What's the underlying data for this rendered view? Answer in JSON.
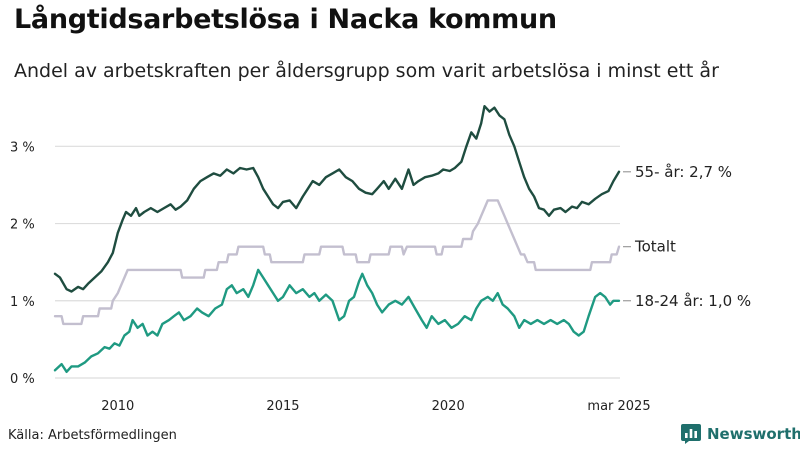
{
  "header": {
    "title": "Långtidsarbetslösa i Nacka kommun",
    "subtitle": "Andel av arbetskraften per åldersgrupp som varit arbetslösa i minst ett år"
  },
  "footer": {
    "source": "Källa: Arbetsförmedlingen",
    "brand": "Newsworthy"
  },
  "colors": {
    "older": "#1f4d40",
    "total": "#c3bfcf",
    "young": "#1f9a82",
    "grid": "#dddddd",
    "brand": "#1f6f6c"
  },
  "chart_data": {
    "type": "line",
    "title": "Långtidsarbetslösa i Nacka kommun",
    "subtitle": "Andel av arbetskraften per åldersgrupp som varit arbetslösa i minst ett år",
    "xlim": [
      2008.1,
      2025.2
    ],
    "ylim": [
      0,
      3.6
    ],
    "grid": "horizontal",
    "y_ticks": [
      0,
      1,
      2,
      3
    ],
    "y_tick_labels": [
      "0 %",
      "1 %",
      "2 %",
      "3 %"
    ],
    "x_ticks": [
      2010,
      2015,
      2020,
      2025.17
    ],
    "x_tick_labels": [
      "2010",
      "2015",
      "2020",
      "mar 2025"
    ],
    "series": [
      {
        "name": "55- år",
        "end_label": "55- år: 2,7 %",
        "points": [
          [
            2008.1,
            1.35
          ],
          [
            2008.25,
            1.3
          ],
          [
            2008.45,
            1.15
          ],
          [
            2008.6,
            1.12
          ],
          [
            2008.8,
            1.18
          ],
          [
            2008.95,
            1.15
          ],
          [
            2009.1,
            1.22
          ],
          [
            2009.3,
            1.3
          ],
          [
            2009.5,
            1.38
          ],
          [
            2009.7,
            1.5
          ],
          [
            2009.85,
            1.62
          ],
          [
            2010.0,
            1.88
          ],
          [
            2010.15,
            2.05
          ],
          [
            2010.25,
            2.15
          ],
          [
            2010.4,
            2.1
          ],
          [
            2010.55,
            2.2
          ],
          [
            2010.65,
            2.1
          ],
          [
            2010.8,
            2.15
          ],
          [
            2011.0,
            2.2
          ],
          [
            2011.2,
            2.15
          ],
          [
            2011.4,
            2.2
          ],
          [
            2011.6,
            2.25
          ],
          [
            2011.75,
            2.18
          ],
          [
            2011.9,
            2.22
          ],
          [
            2012.1,
            2.3
          ],
          [
            2012.3,
            2.45
          ],
          [
            2012.5,
            2.55
          ],
          [
            2012.7,
            2.6
          ],
          [
            2012.9,
            2.65
          ],
          [
            2013.1,
            2.62
          ],
          [
            2013.3,
            2.7
          ],
          [
            2013.5,
            2.65
          ],
          [
            2013.7,
            2.72
          ],
          [
            2013.9,
            2.7
          ],
          [
            2014.1,
            2.72
          ],
          [
            2014.25,
            2.6
          ],
          [
            2014.4,
            2.45
          ],
          [
            2014.55,
            2.35
          ],
          [
            2014.7,
            2.25
          ],
          [
            2014.85,
            2.2
          ],
          [
            2015.0,
            2.28
          ],
          [
            2015.2,
            2.3
          ],
          [
            2015.4,
            2.2
          ],
          [
            2015.6,
            2.35
          ],
          [
            2015.75,
            2.45
          ],
          [
            2015.9,
            2.55
          ],
          [
            2016.1,
            2.5
          ],
          [
            2016.3,
            2.6
          ],
          [
            2016.5,
            2.65
          ],
          [
            2016.7,
            2.7
          ],
          [
            2016.9,
            2.6
          ],
          [
            2017.1,
            2.55
          ],
          [
            2017.3,
            2.45
          ],
          [
            2017.5,
            2.4
          ],
          [
            2017.7,
            2.38
          ],
          [
            2017.85,
            2.45
          ],
          [
            2018.05,
            2.55
          ],
          [
            2018.2,
            2.45
          ],
          [
            2018.4,
            2.58
          ],
          [
            2018.6,
            2.45
          ],
          [
            2018.8,
            2.7
          ],
          [
            2018.95,
            2.5
          ],
          [
            2019.1,
            2.55
          ],
          [
            2019.3,
            2.6
          ],
          [
            2019.5,
            2.62
          ],
          [
            2019.7,
            2.65
          ],
          [
            2019.85,
            2.7
          ],
          [
            2020.05,
            2.68
          ],
          [
            2020.2,
            2.72
          ],
          [
            2020.4,
            2.8
          ],
          [
            2020.55,
            3.0
          ],
          [
            2020.7,
            3.18
          ],
          [
            2020.85,
            3.1
          ],
          [
            2021.0,
            3.3
          ],
          [
            2021.1,
            3.52
          ],
          [
            2021.25,
            3.45
          ],
          [
            2021.4,
            3.5
          ],
          [
            2021.55,
            3.4
          ],
          [
            2021.7,
            3.35
          ],
          [
            2021.85,
            3.15
          ],
          [
            2022.0,
            3.0
          ],
          [
            2022.15,
            2.8
          ],
          [
            2022.3,
            2.6
          ],
          [
            2022.45,
            2.45
          ],
          [
            2022.6,
            2.35
          ],
          [
            2022.75,
            2.2
          ],
          [
            2022.9,
            2.18
          ],
          [
            2023.05,
            2.1
          ],
          [
            2023.2,
            2.18
          ],
          [
            2023.4,
            2.2
          ],
          [
            2023.55,
            2.15
          ],
          [
            2023.75,
            2.22
          ],
          [
            2023.9,
            2.2
          ],
          [
            2024.05,
            2.28
          ],
          [
            2024.25,
            2.25
          ],
          [
            2024.45,
            2.32
          ],
          [
            2024.65,
            2.38
          ],
          [
            2024.85,
            2.42
          ],
          [
            2025.0,
            2.55
          ],
          [
            2025.17,
            2.67
          ]
        ]
      },
      {
        "name": "Totalt",
        "end_label": "Totalt",
        "points": [
          [
            2008.1,
            0.8
          ],
          [
            2008.3,
            0.8
          ],
          [
            2008.35,
            0.7
          ],
          [
            2008.9,
            0.7
          ],
          [
            2008.95,
            0.8
          ],
          [
            2009.4,
            0.8
          ],
          [
            2009.45,
            0.9
          ],
          [
            2009.8,
            0.9
          ],
          [
            2009.85,
            1.0
          ],
          [
            2010.0,
            1.1
          ],
          [
            2010.1,
            1.2
          ],
          [
            2010.2,
            1.3
          ],
          [
            2010.3,
            1.4
          ],
          [
            2011.9,
            1.4
          ],
          [
            2011.95,
            1.3
          ],
          [
            2012.6,
            1.3
          ],
          [
            2012.65,
            1.4
          ],
          [
            2013.0,
            1.4
          ],
          [
            2013.05,
            1.5
          ],
          [
            2013.3,
            1.5
          ],
          [
            2013.35,
            1.6
          ],
          [
            2013.6,
            1.6
          ],
          [
            2013.65,
            1.7
          ],
          [
            2014.4,
            1.7
          ],
          [
            2014.45,
            1.6
          ],
          [
            2014.6,
            1.6
          ],
          [
            2014.65,
            1.5
          ],
          [
            2015.6,
            1.5
          ],
          [
            2015.65,
            1.6
          ],
          [
            2016.1,
            1.6
          ],
          [
            2016.15,
            1.7
          ],
          [
            2016.8,
            1.7
          ],
          [
            2016.85,
            1.6
          ],
          [
            2017.2,
            1.6
          ],
          [
            2017.25,
            1.5
          ],
          [
            2017.6,
            1.5
          ],
          [
            2017.65,
            1.6
          ],
          [
            2018.2,
            1.6
          ],
          [
            2018.25,
            1.7
          ],
          [
            2018.6,
            1.7
          ],
          [
            2018.65,
            1.6
          ],
          [
            2018.75,
            1.7
          ],
          [
            2019.6,
            1.7
          ],
          [
            2019.65,
            1.6
          ],
          [
            2019.8,
            1.6
          ],
          [
            2019.85,
            1.7
          ],
          [
            2020.4,
            1.7
          ],
          [
            2020.45,
            1.8
          ],
          [
            2020.7,
            1.8
          ],
          [
            2020.75,
            1.9
          ],
          [
            2020.9,
            2.0
          ],
          [
            2021.0,
            2.1
          ],
          [
            2021.1,
            2.2
          ],
          [
            2021.2,
            2.3
          ],
          [
            2021.5,
            2.3
          ],
          [
            2021.6,
            2.2
          ],
          [
            2021.7,
            2.1
          ],
          [
            2021.8,
            2.0
          ],
          [
            2021.9,
            1.9
          ],
          [
            2022.0,
            1.8
          ],
          [
            2022.1,
            1.7
          ],
          [
            2022.2,
            1.6
          ],
          [
            2022.3,
            1.6
          ],
          [
            2022.4,
            1.5
          ],
          [
            2022.6,
            1.5
          ],
          [
            2022.65,
            1.4
          ],
          [
            2024.3,
            1.4
          ],
          [
            2024.35,
            1.5
          ],
          [
            2024.9,
            1.5
          ],
          [
            2024.95,
            1.6
          ],
          [
            2025.1,
            1.6
          ],
          [
            2025.17,
            1.7
          ]
        ]
      },
      {
        "name": "18-24 år",
        "end_label": "18-24 år: 1,0 %",
        "points": [
          [
            2008.1,
            0.1
          ],
          [
            2008.3,
            0.18
          ],
          [
            2008.45,
            0.08
          ],
          [
            2008.6,
            0.15
          ],
          [
            2008.8,
            0.15
          ],
          [
            2009.0,
            0.2
          ],
          [
            2009.2,
            0.28
          ],
          [
            2009.4,
            0.32
          ],
          [
            2009.6,
            0.4
          ],
          [
            2009.75,
            0.38
          ],
          [
            2009.9,
            0.45
          ],
          [
            2010.05,
            0.42
          ],
          [
            2010.2,
            0.55
          ],
          [
            2010.35,
            0.6
          ],
          [
            2010.45,
            0.75
          ],
          [
            2010.6,
            0.65
          ],
          [
            2010.75,
            0.7
          ],
          [
            2010.9,
            0.55
          ],
          [
            2011.05,
            0.6
          ],
          [
            2011.2,
            0.55
          ],
          [
            2011.35,
            0.7
          ],
          [
            2011.55,
            0.75
          ],
          [
            2011.7,
            0.8
          ],
          [
            2011.85,
            0.85
          ],
          [
            2012.0,
            0.75
          ],
          [
            2012.2,
            0.8
          ],
          [
            2012.4,
            0.9
          ],
          [
            2012.55,
            0.85
          ],
          [
            2012.75,
            0.8
          ],
          [
            2012.95,
            0.9
          ],
          [
            2013.15,
            0.95
          ],
          [
            2013.3,
            1.15
          ],
          [
            2013.45,
            1.2
          ],
          [
            2013.6,
            1.1
          ],
          [
            2013.8,
            1.15
          ],
          [
            2013.95,
            1.05
          ],
          [
            2014.1,
            1.2
          ],
          [
            2014.25,
            1.4
          ],
          [
            2014.4,
            1.3
          ],
          [
            2014.55,
            1.2
          ],
          [
            2014.7,
            1.1
          ],
          [
            2014.85,
            1.0
          ],
          [
            2015.0,
            1.05
          ],
          [
            2015.2,
            1.2
          ],
          [
            2015.4,
            1.1
          ],
          [
            2015.6,
            1.15
          ],
          [
            2015.8,
            1.05
          ],
          [
            2015.95,
            1.1
          ],
          [
            2016.1,
            1.0
          ],
          [
            2016.3,
            1.08
          ],
          [
            2016.5,
            1.0
          ],
          [
            2016.7,
            0.75
          ],
          [
            2016.85,
            0.8
          ],
          [
            2017.0,
            1.0
          ],
          [
            2017.15,
            1.05
          ],
          [
            2017.3,
            1.25
          ],
          [
            2017.4,
            1.35
          ],
          [
            2017.55,
            1.2
          ],
          [
            2017.7,
            1.1
          ],
          [
            2017.85,
            0.95
          ],
          [
            2018.0,
            0.85
          ],
          [
            2018.2,
            0.95
          ],
          [
            2018.4,
            1.0
          ],
          [
            2018.6,
            0.95
          ],
          [
            2018.8,
            1.05
          ],
          [
            2019.0,
            0.9
          ],
          [
            2019.2,
            0.75
          ],
          [
            2019.35,
            0.65
          ],
          [
            2019.5,
            0.8
          ],
          [
            2019.7,
            0.7
          ],
          [
            2019.9,
            0.75
          ],
          [
            2020.1,
            0.65
          ],
          [
            2020.3,
            0.7
          ],
          [
            2020.5,
            0.8
          ],
          [
            2020.7,
            0.75
          ],
          [
            2020.85,
            0.9
          ],
          [
            2021.0,
            1.0
          ],
          [
            2021.2,
            1.05
          ],
          [
            2021.35,
            1.0
          ],
          [
            2021.5,
            1.1
          ],
          [
            2021.65,
            0.95
          ],
          [
            2021.8,
            0.9
          ],
          [
            2022.0,
            0.8
          ],
          [
            2022.15,
            0.65
          ],
          [
            2022.3,
            0.75
          ],
          [
            2022.5,
            0.7
          ],
          [
            2022.7,
            0.75
          ],
          [
            2022.9,
            0.7
          ],
          [
            2023.1,
            0.75
          ],
          [
            2023.3,
            0.7
          ],
          [
            2023.5,
            0.75
          ],
          [
            2023.65,
            0.7
          ],
          [
            2023.8,
            0.6
          ],
          [
            2023.95,
            0.55
          ],
          [
            2024.1,
            0.6
          ],
          [
            2024.25,
            0.8
          ],
          [
            2024.45,
            1.05
          ],
          [
            2024.6,
            1.1
          ],
          [
            2024.75,
            1.05
          ],
          [
            2024.9,
            0.95
          ],
          [
            2025.0,
            1.0
          ],
          [
            2025.17,
            1.0
          ]
        ]
      }
    ]
  }
}
